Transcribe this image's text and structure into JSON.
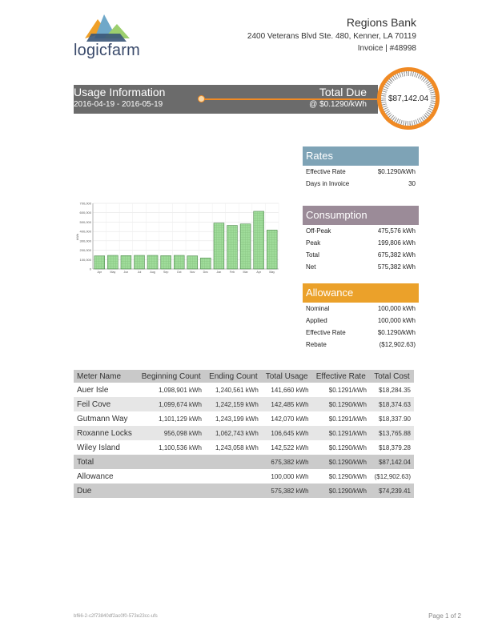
{
  "logo": {
    "word": "logicfarm"
  },
  "header": {
    "company": "Regions Bank",
    "address": "2400 Veterans Blvd Ste. 480, Kenner, LA 70119",
    "invoice": "Invoice | #48998"
  },
  "usage": {
    "title": "Usage Information",
    "dates": "2016-04-19 - 2016-05-19",
    "total_due_label": "Total Due",
    "total_due_rate": "@ $0.1290/kWh",
    "total_due_amount": "$87,142.04"
  },
  "rates": {
    "title": "Rates",
    "rows": [
      {
        "label": "Effective Rate",
        "value": "$0.1290/kWh"
      },
      {
        "label": "Days in Invoice",
        "value": "30"
      }
    ]
  },
  "consumption": {
    "title": "Consumption",
    "rows": [
      {
        "label": "Off-Peak",
        "value": "475,576 kWh"
      },
      {
        "label": "Peak",
        "value": "199,806 kWh"
      },
      {
        "label": "Total",
        "value": "675,382 kWh"
      },
      {
        "label": "Net",
        "value": "575,382 kWh"
      }
    ]
  },
  "allowance": {
    "title": "Allowance",
    "rows": [
      {
        "label": "Nominal",
        "value": "100,000 kWh"
      },
      {
        "label": "Applied",
        "value": "100,000 kWh"
      },
      {
        "label": "Effective Rate",
        "value": "$0.1290/kWh"
      },
      {
        "label": "Rebate",
        "value": "($12,902.63)"
      }
    ]
  },
  "chart_data": {
    "type": "bar",
    "categories": [
      "Apr",
      "May",
      "Jun",
      "Jul",
      "Aug",
      "Sep",
      "Oct",
      "Nov",
      "Dec",
      "Jan",
      "Feb",
      "Mar",
      "Apr",
      "May"
    ],
    "values": [
      140000,
      145000,
      143000,
      145000,
      145000,
      142000,
      145000,
      140000,
      118000,
      490000,
      465000,
      480000,
      615000,
      415000
    ],
    "ylabel": "kWh",
    "yticks": [
      "0",
      "100,000",
      "200,000",
      "300,000",
      "400,000",
      "500,000",
      "600,000",
      "700,000"
    ],
    "ylim": [
      0,
      700000
    ],
    "grid": true,
    "bar_color": "#9fdc9a",
    "bar_edge": "#3d7a3d"
  },
  "table": {
    "headers": [
      "Meter Name",
      "Beginning Count",
      "Ending Count",
      "Total Usage",
      "Effective Rate",
      "Total Cost"
    ],
    "rows": [
      [
        "Auer Isle",
        "1,098,901 kWh",
        "1,240,561 kWh",
        "141,660 kWh",
        "$0.1291/kWh",
        "$18,284.35"
      ],
      [
        "Feil Cove",
        "1,099,674 kWh",
        "1,242,159 kWh",
        "142,485 kWh",
        "$0.1290/kWh",
        "$18,374.63"
      ],
      [
        "Gutmann Way",
        "1,101,129 kWh",
        "1,243,199 kWh",
        "142,070 kWh",
        "$0.1291/kWh",
        "$18,337.90"
      ],
      [
        "Roxanne Locks",
        "956,098 kWh",
        "1,062,743 kWh",
        "106,645 kWh",
        "$0.1291/kWh",
        "$13,765.88"
      ],
      [
        "Wiley Island",
        "1,100,536 kWh",
        "1,243,058 kWh",
        "142,522 kWh",
        "$0.1290/kWh",
        "$18,379.28"
      ]
    ],
    "totals": [
      [
        "Total",
        "675,382 kWh",
        "$0.1290/kWh",
        "$87,142.04"
      ],
      [
        "Allowance",
        "100,000 kWh",
        "$0.1290/kWh",
        "($12,902.63)"
      ],
      [
        "Due",
        "575,382 kWh",
        "$0.1290/kWh",
        "$74,239.41"
      ]
    ]
  },
  "footer": {
    "id": "bf66-2-c2f73840df2ac0f0-573e23cc-ufs",
    "page": "Page 1 of 2"
  }
}
